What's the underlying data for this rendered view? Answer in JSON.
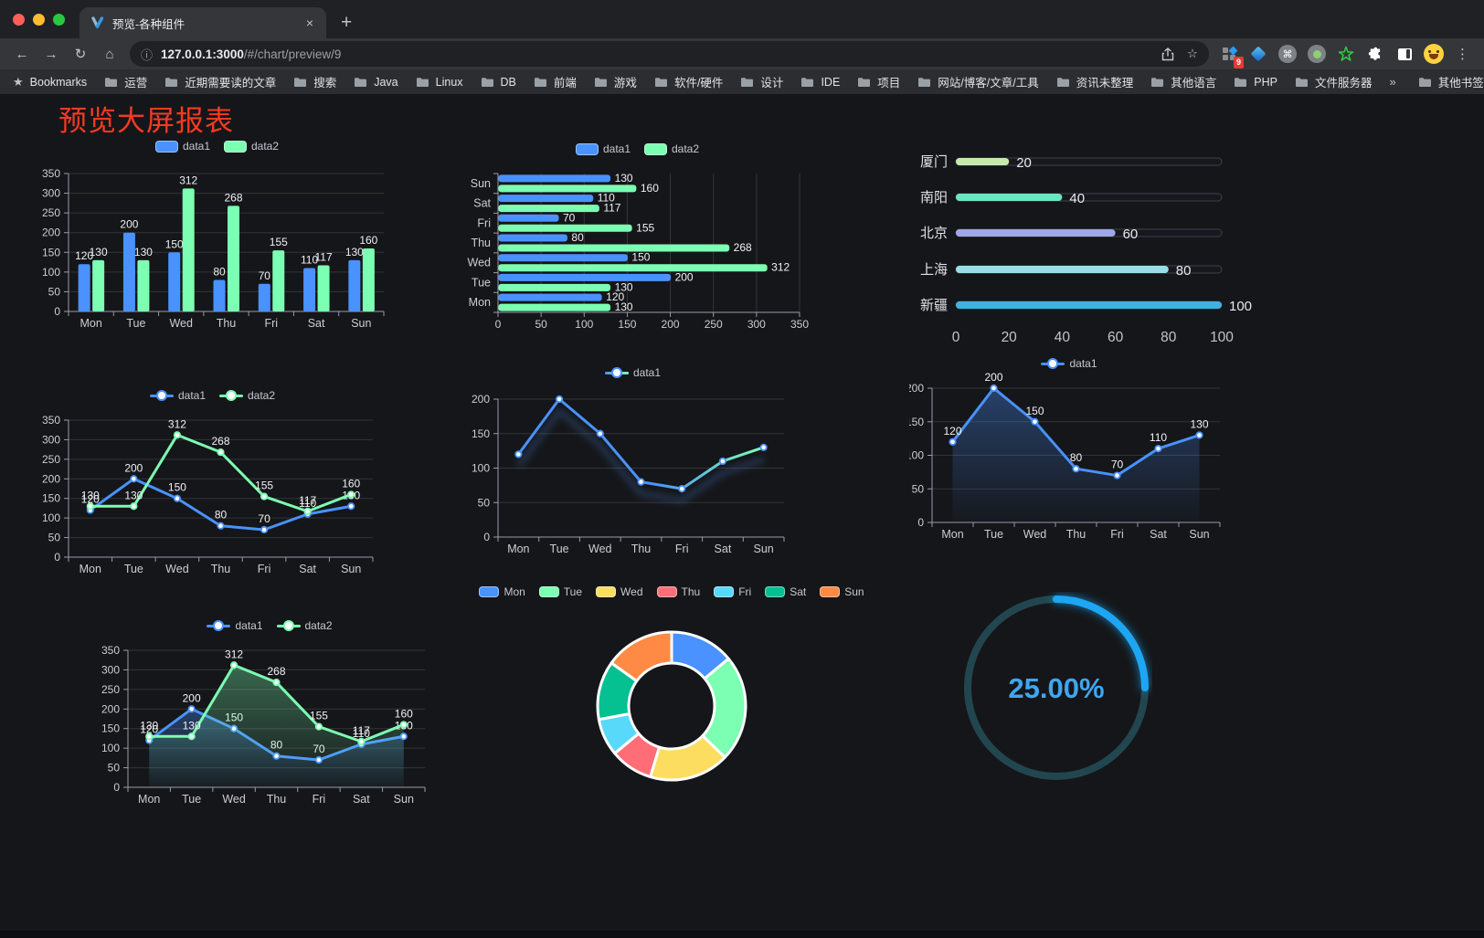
{
  "browser": {
    "tab": {
      "title": "预览-各种组件",
      "close_label": "×",
      "new_tab_label": "+"
    },
    "url": {
      "host": "127.0.0.1:3000",
      "path": "/#/chart/preview/9"
    },
    "extension_badge": "9",
    "bookmarks_label": "Bookmarks",
    "bookmarks": [
      "运营",
      "近期需要读的文章",
      "搜索",
      "Java",
      "Linux",
      "DB",
      "前端",
      "游戏",
      "软件/硬件",
      "设计",
      "IDE",
      "项目",
      "网站/博客/文章/工具",
      "资讯未整理",
      "其他语言",
      "PHP",
      "文件服务器"
    ],
    "bookmarks_overflow": "»",
    "other_bookmarks": "其他书签"
  },
  "page": {
    "title": "预览大屏报表",
    "title_color": "#f73a22"
  },
  "chart_data": [
    {
      "id": "bar-vertical",
      "type": "bar",
      "categories": [
        "Mon",
        "Tue",
        "Wed",
        "Thu",
        "Fri",
        "Sat",
        "Sun"
      ],
      "series": [
        {
          "name": "data1",
          "color": "#4992ff",
          "values": [
            120,
            200,
            150,
            80,
            70,
            110,
            130
          ]
        },
        {
          "name": "data2",
          "color": "#7cffb2",
          "values": [
            130,
            130,
            312,
            268,
            155,
            117,
            160
          ]
        }
      ],
      "ylim": [
        0,
        350
      ],
      "ystep": 50,
      "legend_position": "top",
      "grid": true,
      "show_labels": true
    },
    {
      "id": "bar-horizontal",
      "type": "bar-horizontal",
      "categories": [
        "Mon",
        "Tue",
        "Wed",
        "Thu",
        "Fri",
        "Sat",
        "Sun"
      ],
      "series": [
        {
          "name": "data1",
          "color": "#4992ff",
          "values": [
            120,
            200,
            150,
            80,
            70,
            110,
            130
          ]
        },
        {
          "name": "data2",
          "color": "#7cffb2",
          "values": [
            130,
            130,
            312,
            268,
            155,
            117,
            160
          ]
        }
      ],
      "xlim": [
        0,
        350
      ],
      "xstep": 50,
      "legend_position": "top",
      "grid": true,
      "show_labels": true
    },
    {
      "id": "progress",
      "type": "progress-bars",
      "rows": [
        {
          "label": "厦门",
          "value": 20,
          "color": "#c4ebad"
        },
        {
          "label": "南阳",
          "value": 40,
          "color": "#6be6c1"
        },
        {
          "label": "北京",
          "value": 60,
          "color": "#a0a7e6"
        },
        {
          "label": "上海",
          "value": 80,
          "color": "#96dee8"
        },
        {
          "label": "新疆",
          "value": 100,
          "color": "#3fb1e3"
        }
      ],
      "xlim": [
        0,
        100
      ],
      "xticks": [
        0,
        20,
        40,
        60,
        80,
        100
      ]
    },
    {
      "id": "line-dual",
      "type": "line",
      "categories": [
        "Mon",
        "Tue",
        "Wed",
        "Thu",
        "Fri",
        "Sat",
        "Sun"
      ],
      "series": [
        {
          "name": "data1",
          "color": "#4992ff",
          "values": [
            120,
            200,
            150,
            80,
            70,
            110,
            130
          ]
        },
        {
          "name": "data2",
          "color": "#7cffb2",
          "values": [
            130,
            130,
            312,
            268,
            155,
            117,
            160
          ]
        }
      ],
      "ylim": [
        0,
        350
      ],
      "ystep": 50,
      "legend_position": "top",
      "grid": true,
      "show_labels": true
    },
    {
      "id": "line-gradient",
      "type": "line",
      "categories": [
        "Mon",
        "Tue",
        "Wed",
        "Thu",
        "Fri",
        "Sat",
        "Sun"
      ],
      "series": [
        {
          "name": "data1",
          "color": "#4992ff",
          "color2": "#7cffb2",
          "gradient": true,
          "shadow": true,
          "values": [
            120,
            200,
            150,
            80,
            70,
            110,
            130
          ]
        }
      ],
      "ylim": [
        0,
        200
      ],
      "ystep": 50,
      "legend_position": "top",
      "grid": true,
      "show_labels": false
    },
    {
      "id": "area-single",
      "type": "area",
      "categories": [
        "Mon",
        "Tue",
        "Wed",
        "Thu",
        "Fri",
        "Sat",
        "Sun"
      ],
      "series": [
        {
          "name": "data1",
          "color": "#4992ff",
          "area": true,
          "values": [
            120,
            200,
            150,
            80,
            70,
            110,
            130
          ]
        }
      ],
      "ylim": [
        0,
        200
      ],
      "ystep": 50,
      "legend_position": "top",
      "grid": true,
      "show_labels": true
    },
    {
      "id": "area-dual",
      "type": "area",
      "categories": [
        "Mon",
        "Tue",
        "Wed",
        "Thu",
        "Fri",
        "Sat",
        "Sun"
      ],
      "series": [
        {
          "name": "data1",
          "color": "#4992ff",
          "area": true,
          "values": [
            120,
            200,
            150,
            80,
            70,
            110,
            130
          ]
        },
        {
          "name": "data2",
          "color": "#7cffb2",
          "area": true,
          "values": [
            130,
            130,
            312,
            268,
            155,
            117,
            160
          ]
        }
      ],
      "ylim": [
        0,
        350
      ],
      "ystep": 50,
      "legend_position": "top",
      "grid": true,
      "show_labels": true
    },
    {
      "id": "donut",
      "type": "pie",
      "items": [
        {
          "name": "Mon",
          "value": 120,
          "color": "#4992ff"
        },
        {
          "name": "Tue",
          "value": 200,
          "color": "#7cffb2"
        },
        {
          "name": "Wed",
          "value": 150,
          "color": "#fddd60"
        },
        {
          "name": "Thu",
          "value": 80,
          "color": "#ff6e76"
        },
        {
          "name": "Fri",
          "value": 70,
          "color": "#58d9f9"
        },
        {
          "name": "Sat",
          "value": 110,
          "color": "#05c091"
        },
        {
          "name": "Sun",
          "value": 130,
          "color": "#ff8a45"
        }
      ],
      "legend_position": "top"
    },
    {
      "id": "gauge",
      "type": "gauge",
      "value": 25,
      "label": "25.00%",
      "color": "#1fa6f4",
      "track_color": "#22464f"
    }
  ]
}
